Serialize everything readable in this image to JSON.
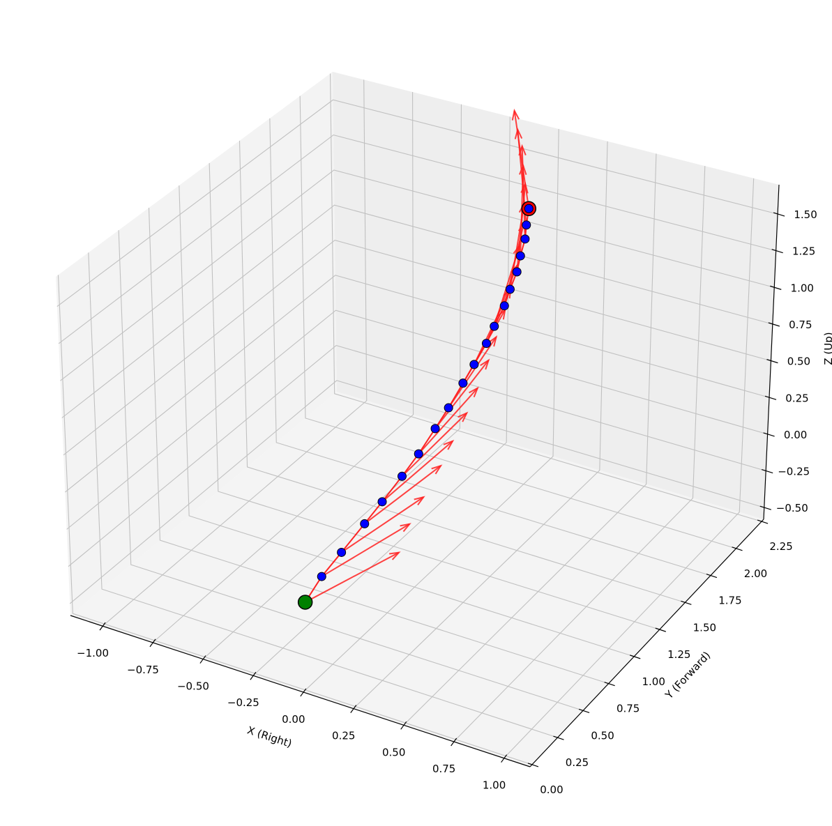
{
  "chart_data": {
    "type": "line",
    "subtype": "3d-trajectory-with-orientation-quiver",
    "title": "",
    "xlabel": "X (Right)",
    "ylabel": "Y (Forward)",
    "zlabel": "Z (Up)",
    "xlim": [
      -1.16,
      1.13
    ],
    "ylim": [
      -0.02,
      2.27
    ],
    "zlim": [
      -0.58,
      1.7
    ],
    "grid": true,
    "x_ticks": [
      -1.0,
      -0.75,
      -0.5,
      -0.25,
      0.0,
      0.25,
      0.5,
      0.75,
      1.0
    ],
    "x_tick_labels": [
      "−1.00",
      "−0.75",
      "−0.50",
      "−0.25",
      "0.00",
      "0.25",
      "0.50",
      "0.75",
      "1.00"
    ],
    "y_ticks": [
      0.0,
      0.25,
      0.5,
      0.75,
      1.0,
      1.25,
      1.5,
      1.75,
      2.0,
      2.25
    ],
    "y_tick_labels": [
      "0.00",
      "0.25",
      "0.50",
      "0.75",
      "1.00",
      "1.25",
      "1.50",
      "1.75",
      "2.00",
      "2.25"
    ],
    "z_ticks": [
      -0.5,
      -0.25,
      0.0,
      0.25,
      0.5,
      0.75,
      1.0,
      1.25,
      1.5
    ],
    "z_tick_labels": [
      "−0.50",
      "−0.25",
      "0.00",
      "0.25",
      "0.50",
      "0.75",
      "1.00",
      "1.25",
      "1.50"
    ],
    "trajectory": {
      "x": [
        0,
        0,
        0,
        0,
        0,
        0,
        0,
        0,
        0,
        0,
        0,
        0,
        0,
        0,
        0,
        0,
        0,
        0,
        0,
        0
      ],
      "y": [
        0.0,
        0.15,
        0.33,
        0.54,
        0.7,
        0.88,
        1.03,
        1.18,
        1.3,
        1.43,
        1.53,
        1.64,
        1.71,
        1.8,
        1.85,
        1.91,
        1.94,
        1.98,
        1.99,
        2.01
      ],
      "z": [
        0.0,
        0.07,
        0.11,
        0.16,
        0.2,
        0.25,
        0.3,
        0.37,
        0.43,
        0.51,
        0.57,
        0.64,
        0.71,
        0.79,
        0.87,
        0.95,
        1.04,
        1.13,
        1.22,
        1.32
      ],
      "line_color": "#ff0000",
      "point_color": "#0000ff"
    },
    "orientation_arrows": {
      "color": "#ff2020",
      "start_direction": [
        0.22,
        0.45,
        0.12
      ],
      "end_direction": [
        -0.08,
        0.0,
        0.65
      ]
    },
    "start_marker": {
      "color": "#008000"
    },
    "end_marker": {
      "color": "#ff0000"
    },
    "pane_colors": {
      "left": "#f3f3f3",
      "back": "#eeeeee",
      "floor": "#f4f4f4"
    },
    "grid_color": "#c0c0c0"
  }
}
